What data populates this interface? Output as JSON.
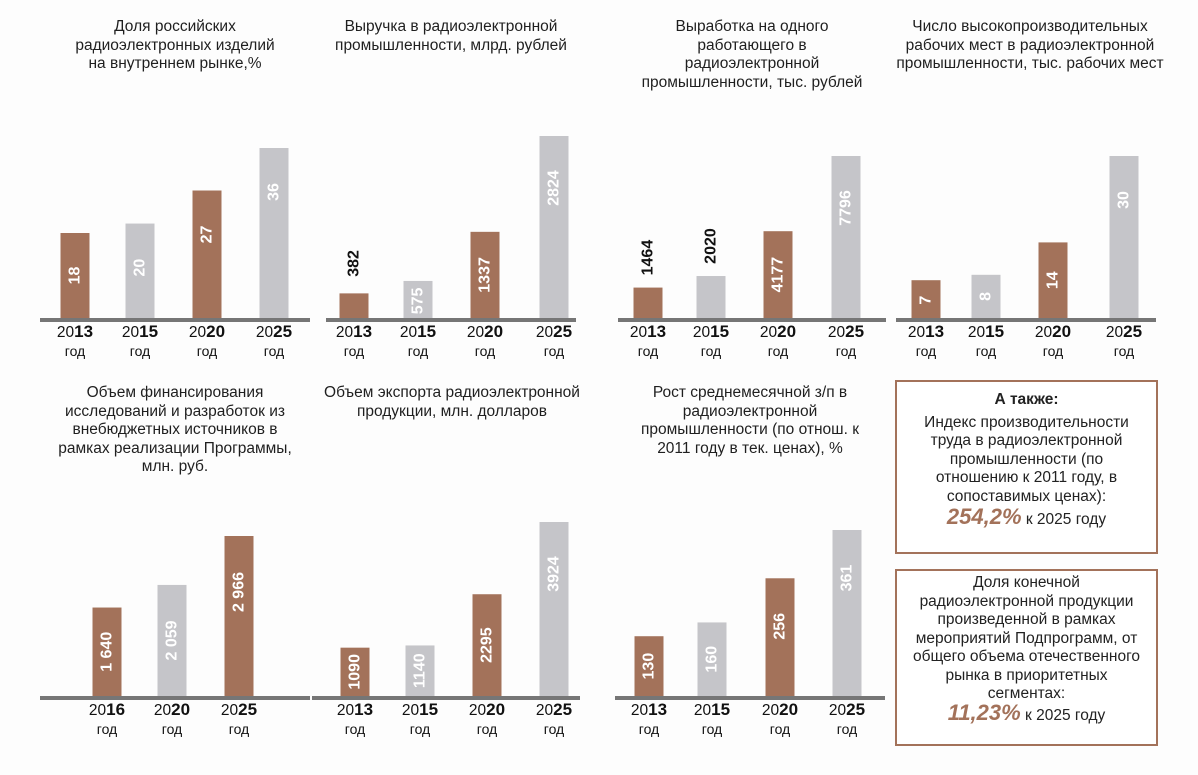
{
  "colors": {
    "brown": "#a3725a",
    "gray": "#c5c5c9",
    "axis": "#767676",
    "accent": "#a3725a"
  },
  "god_label": "год",
  "chart_data": [
    {
      "type": "bar",
      "title": "Доля российских радиоэлектронных изделий на внутреннем рынке,%",
      "categories": [
        "2013",
        "2015",
        "2020",
        "2025"
      ],
      "values": [
        18,
        20,
        27,
        36
      ],
      "labels": [
        "18",
        "20",
        "27",
        "36"
      ],
      "colors": [
        "brown",
        "gray",
        "brown",
        "gray"
      ],
      "label_pos": [
        "inside",
        "inside",
        "inside",
        "inside"
      ],
      "ylim": [
        0,
        36
      ]
    },
    {
      "type": "bar",
      "title": "Выручка в радиоэлектронной промышленности, млрд. рублей",
      "categories": [
        "2013",
        "2015",
        "2020",
        "2025"
      ],
      "values": [
        382,
        575,
        1337,
        2824
      ],
      "labels": [
        "382",
        "575",
        "1337",
        "2824"
      ],
      "colors": [
        "brown",
        "gray",
        "brown",
        "gray"
      ],
      "label_pos": [
        "above",
        "inside",
        "inside",
        "inside"
      ],
      "ylim": [
        0,
        2824
      ]
    },
    {
      "type": "bar",
      "title": "Выработка на одного работающего в радиоэлектронной промышленности, тыс. рублей",
      "categories": [
        "2013",
        "2015",
        "2020",
        "2025"
      ],
      "values": [
        1464,
        2020,
        4177,
        7796
      ],
      "labels": [
        "1464",
        "2020",
        "4177",
        "7796"
      ],
      "colors": [
        "brown",
        "gray",
        "brown",
        "gray"
      ],
      "label_pos": [
        "above",
        "above",
        "inside",
        "inside"
      ],
      "ylim": [
        0,
        7796
      ]
    },
    {
      "type": "bar",
      "title": "Число высокопроизводительных рабочих мест в радиоэлектронной промышленности, тыс. рабочих мест",
      "categories": [
        "2013",
        "2015",
        "2020",
        "2025"
      ],
      "values": [
        7,
        8,
        14,
        30
      ],
      "labels": [
        "7",
        "8",
        "14",
        "30"
      ],
      "colors": [
        "brown",
        "gray",
        "brown",
        "gray"
      ],
      "label_pos": [
        "inside",
        "inside",
        "inside",
        "inside"
      ],
      "ylim": [
        0,
        30
      ]
    },
    {
      "type": "bar",
      "title": "Объем финансирования исследований и разработок из внебюджетных источников в рамках реализации Программы, млн. руб.",
      "categories": [
        "2016",
        "2020",
        "2025"
      ],
      "values": [
        1640,
        2059,
        2966
      ],
      "labels": [
        "1 640",
        "2 059",
        "2 966"
      ],
      "colors": [
        "brown",
        "gray",
        "brown"
      ],
      "label_pos": [
        "inside",
        "inside",
        "inside"
      ],
      "ylim": [
        0,
        2966
      ]
    },
    {
      "type": "bar",
      "title": "Объем экспорта радиоэлектронной продукции, млн. долларов",
      "categories": [
        "2013",
        "2015",
        "2020",
        "2025"
      ],
      "values": [
        1090,
        1140,
        2295,
        3924
      ],
      "labels": [
        "1090",
        "1140",
        "2295",
        "3924"
      ],
      "colors": [
        "brown",
        "gray",
        "brown",
        "gray"
      ],
      "label_pos": [
        "inside",
        "inside",
        "inside",
        "inside"
      ],
      "ylim": [
        0,
        3924
      ]
    },
    {
      "type": "bar",
      "title": "Рост среднемесячной з/п в радиоэлектронной промышленности (по отнош. к 2011 году в тек. ценах), %",
      "categories": [
        "2013",
        "2015",
        "2020",
        "2025"
      ],
      "values": [
        130,
        160,
        256,
        361
      ],
      "labels": [
        "130",
        "160",
        "256",
        "361"
      ],
      "colors": [
        "brown",
        "gray",
        "brown",
        "gray"
      ],
      "label_pos": [
        "inside",
        "inside",
        "inside",
        "inside"
      ],
      "ylim": [
        0,
        361
      ]
    }
  ],
  "info_boxes": {
    "box1": {
      "heading": "А также:",
      "text": "Индекс производительности труда в радиоэлектронной промышленности (по отношению к 2011 году, в сопоставимых ценах):",
      "value": "254,2%",
      "suffix": " к 2025 году"
    },
    "box2": {
      "text": "Доля конечной радиоэлектронной продукции произведенной в рамках мероприятий Подпрограмм, от общего объема отечественного рынка в приоритетных сегментах:",
      "value": "11,23%",
      "suffix": " к 2025 году"
    }
  }
}
